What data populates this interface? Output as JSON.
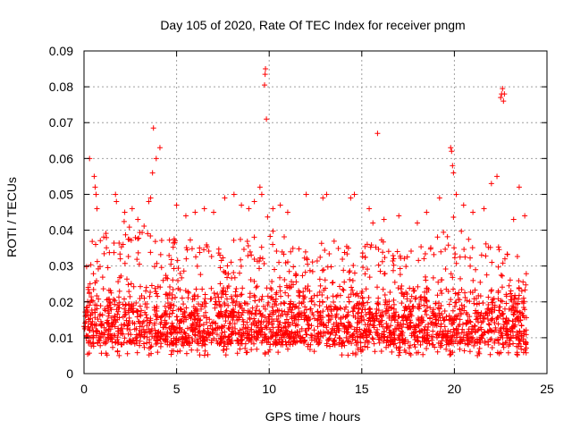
{
  "chart_data": {
    "type": "scatter",
    "title": "Day 105 of 2020, Rate Of TEC Index for receiver pngm",
    "xlabel": "GPS time / hours",
    "ylabel": "ROTI / TECUs",
    "xlim": [
      0,
      25
    ],
    "ylim": [
      0,
      0.09
    ],
    "xticks": [
      0,
      5,
      10,
      15,
      20,
      25
    ],
    "xtick_labels": [
      "0",
      "5",
      "10",
      "15",
      "20",
      "25"
    ],
    "yticks": [
      0,
      0.01,
      0.02,
      0.03,
      0.04,
      0.05,
      0.06,
      0.07,
      0.08,
      0.09
    ],
    "ytick_labels": [
      "0",
      "0.01",
      "0.02",
      "0.03",
      "0.04",
      "0.05",
      "0.06",
      "0.07",
      "0.08",
      "0.09"
    ],
    "grid": true,
    "marker": "+",
    "color": "#ff0000",
    "data_range_hours": [
      0,
      23.9
    ],
    "series": [
      {
        "name": "ROTI",
        "points": [
          [
            0.3,
            0.06
          ],
          [
            0.55,
            0.055
          ],
          [
            0.6,
            0.052
          ],
          [
            0.65,
            0.05
          ],
          [
            0.7,
            0.046
          ],
          [
            1.7,
            0.05
          ],
          [
            1.75,
            0.048
          ],
          [
            2.2,
            0.045
          ],
          [
            2.6,
            0.046
          ],
          [
            3.6,
            0.049
          ],
          [
            3.7,
            0.056
          ],
          [
            3.75,
            0.0685
          ],
          [
            3.9,
            0.06
          ],
          [
            4.1,
            0.063
          ],
          [
            3.5,
            0.048
          ],
          [
            5.0,
            0.047
          ],
          [
            5.5,
            0.044
          ],
          [
            6.0,
            0.045
          ],
          [
            6.5,
            0.046
          ],
          [
            7.0,
            0.045
          ],
          [
            7.6,
            0.049
          ],
          [
            8.1,
            0.05
          ],
          [
            8.5,
            0.047
          ],
          [
            8.9,
            0.046
          ],
          [
            9.2,
            0.048
          ],
          [
            9.5,
            0.052
          ],
          [
            9.6,
            0.05
          ],
          [
            9.75,
            0.0805
          ],
          [
            9.78,
            0.0835
          ],
          [
            9.8,
            0.085
          ],
          [
            9.85,
            0.071
          ],
          [
            10.2,
            0.046
          ],
          [
            10.6,
            0.047
          ],
          [
            11.0,
            0.045
          ],
          [
            12.0,
            0.05
          ],
          [
            12.9,
            0.049
          ],
          [
            13.1,
            0.05
          ],
          [
            14.4,
            0.049
          ],
          [
            14.6,
            0.05
          ],
          [
            15.4,
            0.046
          ],
          [
            15.6,
            0.042
          ],
          [
            15.85,
            0.067
          ],
          [
            16.2,
            0.043
          ],
          [
            17.0,
            0.044
          ],
          [
            18.0,
            0.042
          ],
          [
            18.5,
            0.045
          ],
          [
            19.2,
            0.049
          ],
          [
            19.8,
            0.063
          ],
          [
            19.85,
            0.062
          ],
          [
            19.9,
            0.058
          ],
          [
            19.95,
            0.056
          ],
          [
            20.1,
            0.05
          ],
          [
            20.5,
            0.047
          ],
          [
            21.0,
            0.045
          ],
          [
            21.6,
            0.046
          ],
          [
            22.0,
            0.053
          ],
          [
            22.3,
            0.055
          ],
          [
            22.5,
            0.077
          ],
          [
            22.55,
            0.078
          ],
          [
            22.6,
            0.0795
          ],
          [
            22.65,
            0.076
          ],
          [
            22.7,
            0.078
          ],
          [
            23.5,
            0.052
          ],
          [
            23.8,
            0.044
          ],
          [
            23.2,
            0.043
          ]
        ],
        "dense_band": {
          "description_baseline_min": 0.005,
          "typical_range": [
            0.008,
            0.025
          ],
          "upper_envelope": [
            [
              0,
              0.035
            ],
            [
              1,
              0.04
            ],
            [
              2,
              0.043
            ],
            [
              3,
              0.043
            ],
            [
              4,
              0.04
            ],
            [
              5,
              0.038
            ],
            [
              6,
              0.037
            ],
            [
              7,
              0.036
            ],
            [
              8,
              0.038
            ],
            [
              9,
              0.042
            ],
            [
              10,
              0.044
            ],
            [
              11,
              0.038
            ],
            [
              12,
              0.034
            ],
            [
              13,
              0.038
            ],
            [
              14,
              0.036
            ],
            [
              15,
              0.035
            ],
            [
              16,
              0.04
            ],
            [
              17,
              0.034
            ],
            [
              18,
              0.035
            ],
            [
              19,
              0.04
            ],
            [
              20,
              0.044
            ],
            [
              21,
              0.037
            ],
            [
              22,
              0.036
            ],
            [
              23,
              0.035
            ],
            [
              23.9,
              0.03
            ]
          ]
        }
      }
    ]
  }
}
